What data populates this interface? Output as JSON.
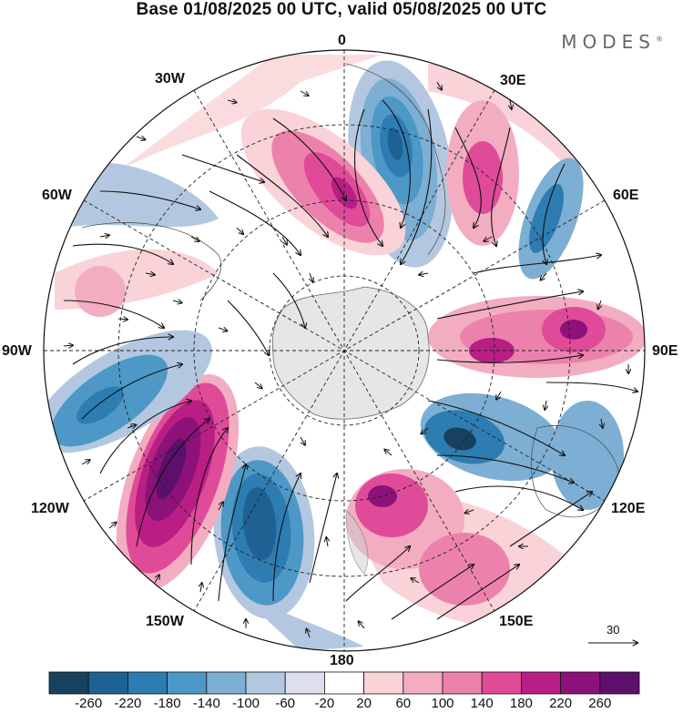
{
  "title": "Base 01/08/2025 00 UTC, valid 05/08/2025 00 UTC",
  "brand": "MODES",
  "brand_mark": "®",
  "longitude_labels": {
    "top": "0",
    "bottom": "180",
    "w30": "30W",
    "w60": "60W",
    "w90": "90W",
    "w120": "120W",
    "w150": "150W",
    "e30": "30E",
    "e60": "60E",
    "e90": "90E",
    "e120": "120E",
    "e150": "150E"
  },
  "colorbar": {
    "ticks": [
      "-260",
      "-220",
      "-180",
      "-140",
      "-100",
      "-60",
      "-20",
      "20",
      "60",
      "100",
      "140",
      "180",
      "220",
      "260"
    ],
    "colors": [
      "#17415e",
      "#1e6293",
      "#2d7db3",
      "#4d98c6",
      "#7daed3",
      "#b3c8e0",
      "#dcdff0",
      "#ffffff",
      "#f9d3d7",
      "#f3adc0",
      "#ec82ab",
      "#df4b99",
      "#b91e85",
      "#8c1179",
      "#5c0f6b"
    ]
  },
  "vector_reference": {
    "value": "30"
  },
  "icons": {
    "arrow": "wind-vector-arrow"
  }
}
